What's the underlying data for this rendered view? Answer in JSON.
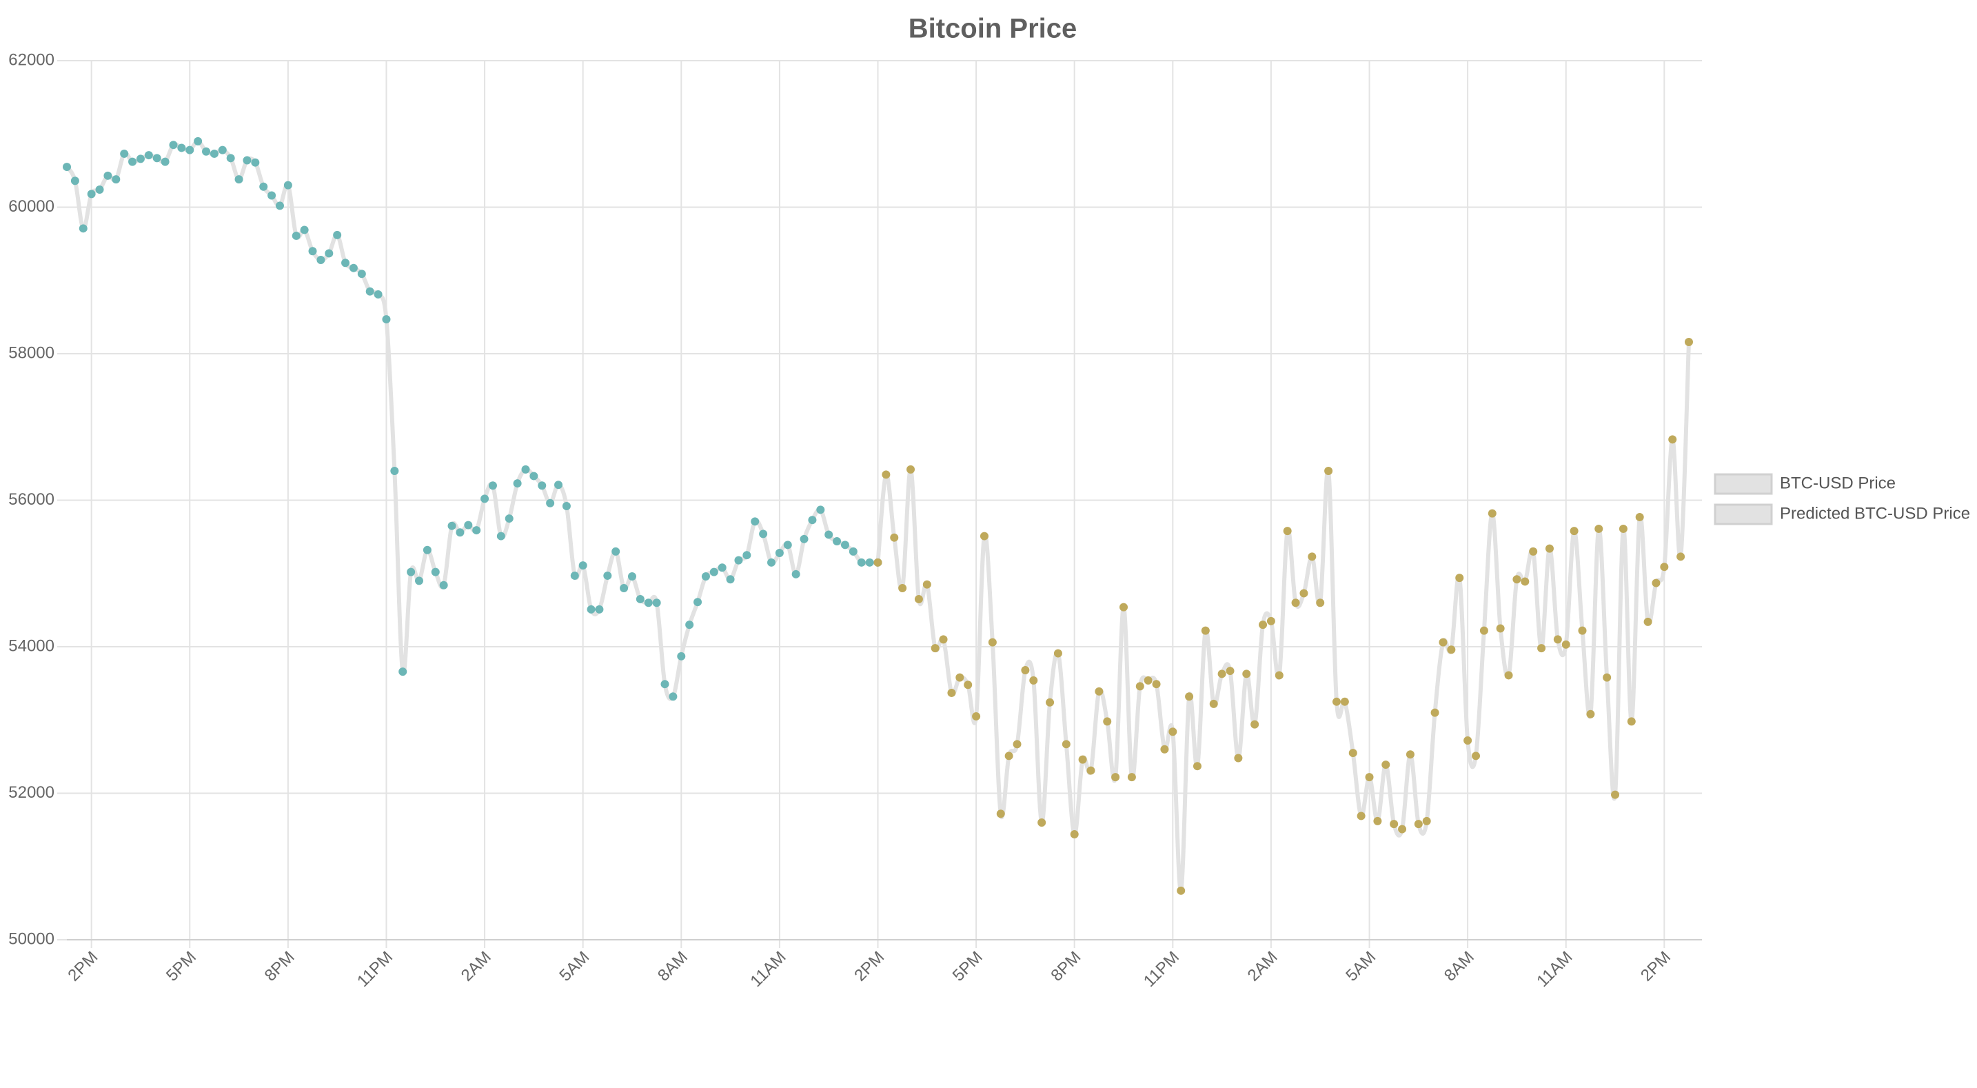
{
  "chart_data": {
    "type": "line",
    "title": "Bitcoin Price",
    "x": [
      13.25,
      13.5,
      13.75,
      14,
      14.25,
      14.5,
      14.75,
      15,
      15.25,
      15.5,
      15.75,
      16,
      16.25,
      16.5,
      16.75,
      17,
      17.25,
      17.5,
      17.75,
      18,
      18.25,
      18.5,
      18.75,
      19,
      19.25,
      19.5,
      19.75,
      20,
      20.25,
      20.5,
      20.75,
      21,
      21.25,
      21.5,
      21.75,
      22,
      22.25,
      22.5,
      22.75,
      23,
      23.25,
      23.5,
      23.75,
      24,
      24.25,
      24.5,
      24.75,
      25,
      25.25,
      25.5,
      25.75,
      26,
      26.25,
      26.5,
      26.75,
      27,
      27.25,
      27.5,
      27.75,
      28,
      28.25,
      28.5,
      28.75,
      29,
      29.25,
      29.5,
      29.75,
      30,
      30.25,
      30.5,
      30.75,
      31,
      31.25,
      31.5,
      31.75,
      32,
      32.25,
      32.5,
      32.75,
      33,
      33.25,
      33.5,
      33.75,
      34,
      34.25,
      34.5,
      34.75,
      35,
      35.25,
      35.5,
      35.75,
      36,
      36.25,
      36.5,
      36.75,
      37,
      37.25,
      37.5,
      37.75,
      38,
      38.25,
      38.5,
      38.75,
      39,
      39.25,
      39.5,
      39.75,
      40,
      40.25,
      40.5,
      40.75,
      41,
      41.25,
      41.5,
      41.75,
      42,
      42.25,
      42.5,
      42.75,
      43,
      43.25,
      43.5,
      43.75,
      44,
      44.25,
      44.5,
      44.75,
      45,
      45.25,
      45.5,
      45.75,
      46,
      46.25,
      46.5,
      46.75,
      47,
      47.25,
      47.5,
      47.75,
      48,
      48.25,
      48.5,
      48.75,
      49,
      49.25,
      49.5,
      49.75,
      50,
      50.25,
      50.5,
      50.75,
      51,
      51.25,
      51.5,
      51.75,
      52,
      52.25,
      52.5,
      52.75,
      53,
      53.25,
      53.5,
      53.75,
      54,
      54.25,
      54.5,
      54.75,
      55,
      55.25,
      55.5,
      55.75,
      56,
      56.25,
      56.5,
      56.75,
      57,
      57.25,
      57.5,
      57.75,
      58,
      58.25,
      58.5,
      58.75,
      59,
      59.25,
      59.5,
      59.75,
      60,
      60.25,
      60.5,
      60.75,
      61,
      61.25,
      61.5,
      61.75,
      62,
      62.25,
      62.5,
      62.75
    ],
    "series": [
      {
        "name": "BTC-USD Price",
        "color": "#6cb6b6",
        "line_color": "#e2e2e2",
        "values": [
          60550,
          60360,
          59710,
          60180,
          60240,
          60430,
          60380,
          60730,
          60620,
          60660,
          60710,
          60670,
          60620,
          60850,
          60810,
          60780,
          60900,
          60760,
          60730,
          60780,
          60670,
          60380,
          60640,
          60610,
          60280,
          60160,
          60020,
          60300,
          59610,
          59690,
          59400,
          59280,
          59370,
          59620,
          59240,
          59170,
          59090,
          58850,
          58810,
          58470,
          56400,
          53660,
          55020,
          54900,
          55320,
          55020,
          54840,
          55650,
          55560,
          55660,
          55590,
          56020,
          56200,
          55510,
          55750,
          56230,
          56420,
          56330,
          56200,
          55960,
          56210,
          55920,
          54970,
          55110,
          54510,
          54510,
          54970,
          55300,
          54800,
          54960,
          54650,
          54600,
          54600,
          53490,
          53320,
          53870,
          54300,
          54610,
          54960,
          55020,
          55080,
          54920,
          55180,
          55250,
          55710,
          55540,
          55150,
          55280,
          55390,
          54990,
          55470,
          55730,
          55870,
          55530,
          55440,
          55390,
          55300,
          55150,
          55150,
          55150,
          null,
          null,
          null,
          null,
          null,
          null,
          null,
          null,
          null,
          null,
          null,
          null,
          null,
          null,
          null,
          null,
          null,
          null,
          null,
          null,
          null,
          null,
          null,
          null,
          null,
          null,
          null,
          null,
          null,
          null,
          null,
          null,
          null,
          null,
          null,
          null,
          null,
          null,
          null,
          null,
          null,
          null,
          null,
          null,
          null,
          null,
          null,
          null,
          null,
          null,
          null,
          null,
          null,
          null,
          null,
          null,
          null,
          null,
          null,
          null,
          null,
          null,
          null,
          null,
          null,
          null,
          null,
          null,
          null,
          null,
          null,
          null,
          null,
          null,
          null,
          null,
          null,
          null,
          null,
          null,
          null,
          null,
          null,
          null,
          null,
          null,
          null,
          null,
          null,
          null,
          null,
          null,
          null,
          null,
          null,
          null,
          null,
          null,
          null
        ]
      },
      {
        "name": "Predicted BTC-USD Price",
        "color": "#bfa95b",
        "line_color": "#e2e2e2",
        "values": [
          null,
          null,
          null,
          null,
          null,
          null,
          null,
          null,
          null,
          null,
          null,
          null,
          null,
          null,
          null,
          null,
          null,
          null,
          null,
          null,
          null,
          null,
          null,
          null,
          null,
          null,
          null,
          null,
          null,
          null,
          null,
          null,
          null,
          null,
          null,
          null,
          null,
          null,
          null,
          null,
          null,
          null,
          null,
          null,
          null,
          null,
          null,
          null,
          null,
          null,
          null,
          null,
          null,
          null,
          null,
          null,
          null,
          null,
          null,
          null,
          null,
          null,
          null,
          null,
          null,
          null,
          null,
          null,
          null,
          null,
          null,
          null,
          null,
          null,
          null,
          null,
          null,
          null,
          null,
          null,
          null,
          null,
          null,
          null,
          null,
          null,
          null,
          null,
          null,
          null,
          null,
          null,
          null,
          null,
          null,
          null,
          null,
          null,
          null,
          55150,
          56350,
          55490,
          54800,
          56420,
          54650,
          54850,
          53980,
          54100,
          53370,
          53580,
          53480,
          53050,
          55510,
          54060,
          51720,
          52510,
          52670,
          53680,
          53540,
          51600,
          53240,
          53910,
          52670,
          51440,
          52460,
          52310,
          53390,
          52980,
          52220,
          54540,
          52220,
          53460,
          53540,
          53490,
          52600,
          52840,
          50670,
          53320,
          52370,
          54220,
          53220,
          53630,
          53670,
          52480,
          53630,
          52940,
          54300,
          54350,
          53610,
          55580,
          54600,
          54730,
          55230,
          54600,
          56400,
          53250,
          53250,
          52550,
          51690,
          52220,
          51620,
          52390,
          51580,
          51510,
          52530,
          51580,
          51620,
          53100,
          54060,
          53960,
          54940,
          52720,
          52510,
          54220,
          55820,
          54250,
          53610,
          54920,
          54890,
          55300,
          53980,
          55340,
          54100,
          54030,
          55580,
          54220,
          53080,
          55610,
          53580,
          51980,
          55610,
          52980,
          55770,
          54340,
          54870,
          55090,
          56830,
          55230,
          58160
        ]
      }
    ],
    "xlim": [
      13.25,
      63.15
    ],
    "xticks": [
      {
        "value": 14,
        "label": "2PM"
      },
      {
        "value": 17,
        "label": "5PM"
      },
      {
        "value": 20,
        "label": "8PM"
      },
      {
        "value": 23,
        "label": "11PM"
      },
      {
        "value": 26,
        "label": "2AM"
      },
      {
        "value": 29,
        "label": "5AM"
      },
      {
        "value": 32,
        "label": "8AM"
      },
      {
        "value": 35,
        "label": "11AM"
      },
      {
        "value": 38,
        "label": "2PM"
      },
      {
        "value": 41,
        "label": "5PM"
      },
      {
        "value": 44,
        "label": "8PM"
      },
      {
        "value": 47,
        "label": "11PM"
      },
      {
        "value": 50,
        "label": "2AM"
      },
      {
        "value": 53,
        "label": "5AM"
      },
      {
        "value": 56,
        "label": "8AM"
      },
      {
        "value": 59,
        "label": "11AM"
      },
      {
        "value": 62,
        "label": "2PM"
      }
    ],
    "ylim": [
      50000,
      62000
    ],
    "yticks": [
      50000,
      52000,
      54000,
      56000,
      58000,
      60000,
      62000
    ],
    "grid": true,
    "legend": "right"
  }
}
